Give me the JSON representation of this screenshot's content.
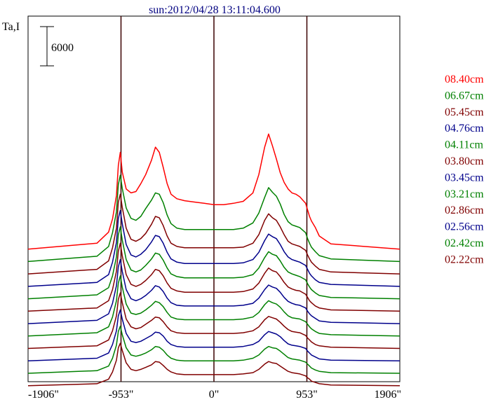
{
  "chart_data": {
    "type": "line",
    "title": "sun:2012/04/28 13:11:04.600",
    "ylabel": "Ta,I",
    "scale_bar_label": "6000",
    "scale_bar_value": 6000,
    "xlim": [
      -1906,
      1906
    ],
    "x_ticks": [
      {
        "value": -1906,
        "label": "-1906\""
      },
      {
        "value": -953,
        "label": "-953\""
      },
      {
        "value": 0,
        "label": "0\""
      },
      {
        "value": 953,
        "label": "953\""
      },
      {
        "value": 1906,
        "label": "1906\""
      }
    ],
    "vertical_lines": [
      -953,
      0,
      953
    ],
    "profile_x": [
      -1906,
      -1200,
      -1080,
      -1040,
      -1000,
      -980,
      -960,
      -940,
      -900,
      -850,
      -800,
      -750,
      -700,
      -640,
      -600,
      -560,
      -520,
      -480,
      -440,
      -380,
      -300,
      -200,
      -100,
      0,
      100,
      200,
      300,
      400,
      460,
      520,
      560,
      600,
      640,
      680,
      720,
      760,
      800,
      840,
      880,
      940,
      960,
      980,
      1000,
      1040,
      1080,
      1200,
      1906
    ],
    "series": [
      {
        "name": "08.40cm",
        "color": "#ff0000",
        "offset": 19000,
        "values": [
          0,
          900,
          2600,
          4600,
          8200,
          12800,
          14800,
          11800,
          9200,
          8600,
          8800,
          10000,
          11400,
          13600,
          15600,
          14800,
          12500,
          10000,
          8400,
          7700,
          7400,
          7200,
          7000,
          6800,
          6800,
          7000,
          7300,
          8600,
          11400,
          15600,
          17600,
          15800,
          13800,
          11700,
          10200,
          9200,
          8600,
          8400,
          8000,
          7000,
          6000,
          5000,
          4300,
          3300,
          2000,
          800,
          0
        ]
      },
      {
        "name": "06.67cm",
        "color": "#008000",
        "offset": 17100,
        "values": [
          0,
          800,
          2300,
          4400,
          7600,
          11800,
          13200,
          11200,
          8200,
          6600,
          6300,
          6900,
          8100,
          9400,
          10500,
          10300,
          9000,
          7100,
          5800,
          5100,
          4900,
          4900,
          4900,
          4900,
          4900,
          4900,
          5100,
          5900,
          7400,
          9800,
          11300,
          10600,
          10000,
          8800,
          7200,
          6100,
          5600,
          5400,
          5200,
          4400,
          3500,
          2800,
          2200,
          1500,
          900,
          400,
          0
        ]
      },
      {
        "name": "05.45cm",
        "color": "#800000",
        "offset": 15200,
        "values": [
          0,
          700,
          2000,
          4000,
          7000,
          11000,
          12200,
          10200,
          7000,
          5300,
          5000,
          5400,
          6200,
          7600,
          8800,
          8600,
          7400,
          5800,
          4700,
          4200,
          4000,
          4000,
          4000,
          4000,
          4000,
          4000,
          4100,
          4700,
          6000,
          8200,
          9200,
          8600,
          8200,
          7200,
          6000,
          5000,
          4600,
          4400,
          4200,
          3600,
          2900,
          2300,
          1800,
          1200,
          700,
          300,
          0
        ]
      },
      {
        "name": "04.76cm",
        "color": "#00008b",
        "offset": 13300,
        "values": [
          0,
          600,
          1800,
          3700,
          6700,
          10400,
          11600,
          9600,
          6400,
          4800,
          4500,
          4900,
          5600,
          6800,
          7800,
          7600,
          6600,
          5200,
          4200,
          3700,
          3500,
          3500,
          3500,
          3500,
          3500,
          3500,
          3600,
          4100,
          5200,
          7000,
          8000,
          7600,
          7300,
          6400,
          5300,
          4500,
          4100,
          3900,
          3700,
          3200,
          2600,
          2000,
          1600,
          1000,
          600,
          300,
          0
        ]
      },
      {
        "name": "04.11cm",
        "color": "#008000",
        "offset": 11400,
        "values": [
          0,
          600,
          1700,
          3500,
          6400,
          9800,
          11000,
          9000,
          6000,
          4400,
          4100,
          4400,
          5100,
          6100,
          7000,
          6800,
          5900,
          4700,
          3800,
          3400,
          3200,
          3200,
          3200,
          3200,
          3200,
          3200,
          3300,
          3700,
          4700,
          6300,
          7200,
          6800,
          6600,
          5800,
          4800,
          4100,
          3800,
          3600,
          3400,
          2900,
          2300,
          1800,
          1400,
          900,
          500,
          200,
          0
        ]
      },
      {
        "name": "03.80cm",
        "color": "#800000",
        "offset": 9500,
        "values": [
          0,
          500,
          1600,
          3300,
          6100,
          9200,
          10400,
          8500,
          5600,
          4100,
          3800,
          4100,
          4700,
          5600,
          6400,
          6200,
          5400,
          4300,
          3500,
          3100,
          2900,
          2900,
          2900,
          2900,
          2900,
          2900,
          3000,
          3400,
          4300,
          5800,
          6600,
          6200,
          6000,
          5300,
          4400,
          3700,
          3400,
          3200,
          3100,
          2600,
          2100,
          1600,
          1300,
          800,
          500,
          200,
          0
        ]
      },
      {
        "name": "03.45cm",
        "color": "#00008b",
        "offset": 7600,
        "values": [
          0,
          500,
          1500,
          3100,
          5800,
          8700,
          9800,
          8000,
          5200,
          3800,
          3500,
          3800,
          4300,
          5100,
          5800,
          5600,
          4900,
          3900,
          3200,
          2800,
          2700,
          2700,
          2700,
          2700,
          2700,
          2700,
          2800,
          3100,
          3900,
          5200,
          5900,
          5600,
          5400,
          4800,
          4000,
          3400,
          3100,
          2900,
          2800,
          2400,
          1900,
          1500,
          1200,
          800,
          400,
          200,
          0
        ]
      },
      {
        "name": "03.21cm",
        "color": "#008000",
        "offset": 5700,
        "values": [
          0,
          500,
          1400,
          2900,
          5400,
          8100,
          9200,
          7500,
          4900,
          3500,
          3300,
          3500,
          4000,
          4700,
          5300,
          5100,
          4500,
          3600,
          2900,
          2600,
          2500,
          2500,
          2500,
          2500,
          2500,
          2500,
          2600,
          2900,
          3600,
          4800,
          5400,
          5100,
          4900,
          4400,
          3700,
          3100,
          2800,
          2700,
          2600,
          2200,
          1800,
          1400,
          1100,
          700,
          400,
          200,
          0
        ]
      },
      {
        "name": "02.86cm",
        "color": "#800000",
        "offset": 3800,
        "values": [
          0,
          400,
          1300,
          2700,
          5000,
          7500,
          8500,
          7000,
          4500,
          3300,
          3000,
          3200,
          3700,
          4300,
          4800,
          4700,
          4100,
          3300,
          2700,
          2400,
          2300,
          2300,
          2300,
          2300,
          2300,
          2300,
          2400,
          2700,
          3300,
          4400,
          4900,
          4700,
          4500,
          4000,
          3400,
          2900,
          2600,
          2500,
          2400,
          2000,
          1600,
          1300,
          1000,
          600,
          400,
          200,
          0
        ]
      },
      {
        "name": "02.56cm",
        "color": "#00008b",
        "offset": 1900,
        "values": [
          0,
          400,
          1200,
          2500,
          4600,
          6900,
          7800,
          6400,
          4200,
          3000,
          2800,
          3000,
          3400,
          3900,
          4400,
          4300,
          3800,
          3000,
          2500,
          2200,
          2100,
          2100,
          2100,
          2100,
          2100,
          2100,
          2200,
          2500,
          3000,
          4000,
          4500,
          4300,
          4100,
          3700,
          3100,
          2600,
          2400,
          2300,
          2200,
          1900,
          1500,
          1200,
          900,
          600,
          300,
          100,
          0
        ]
      },
      {
        "name": "02.42cm",
        "color": "#008000",
        "offset": 0,
        "values": [
          0,
          400,
          1100,
          2300,
          4300,
          6400,
          7200,
          5900,
          3900,
          2800,
          2600,
          2800,
          3100,
          3600,
          4100,
          4000,
          3500,
          2800,
          2300,
          2000,
          1900,
          1900,
          1900,
          1900,
          1900,
          1900,
          2000,
          2300,
          2800,
          3700,
          4100,
          3900,
          3800,
          3400,
          2900,
          2400,
          2200,
          2100,
          2000,
          1700,
          1400,
          1100,
          800,
          500,
          300,
          100,
          0
        ]
      },
      {
        "name": "02.22cm",
        "color": "#800000",
        "offset": -1900,
        "values": [
          0,
          300,
          1000,
          2100,
          3900,
          5800,
          6500,
          5400,
          3500,
          2500,
          2300,
          2500,
          2800,
          3200,
          3700,
          3600,
          3100,
          2500,
          2100,
          1800,
          1700,
          1700,
          1700,
          1700,
          1700,
          1700,
          1800,
          2000,
          2500,
          3300,
          3700,
          3500,
          3400,
          3000,
          2600,
          2200,
          2000,
          1900,
          1800,
          1500,
          1200,
          1000,
          700,
          500,
          300,
          100,
          0
        ]
      }
    ]
  }
}
